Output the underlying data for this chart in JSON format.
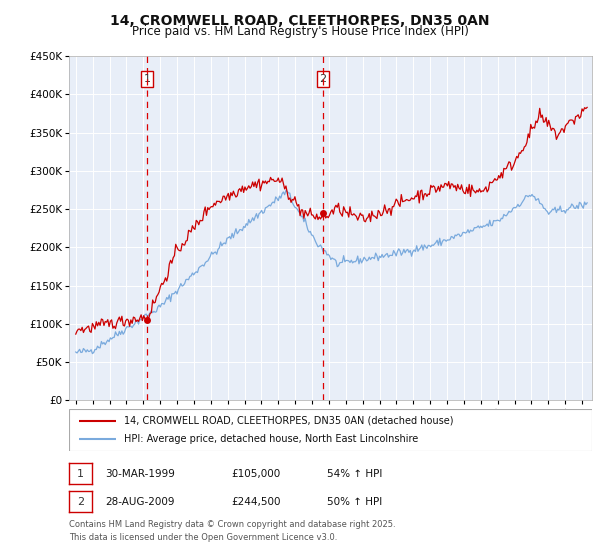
{
  "title": "14, CROMWELL ROAD, CLEETHORPES, DN35 0AN",
  "subtitle": "Price paid vs. HM Land Registry's House Price Index (HPI)",
  "title_fontsize": 10,
  "subtitle_fontsize": 8.5,
  "background_color": "#ffffff",
  "plot_bg_color": "#e8eef8",
  "grid_color": "#ffffff",
  "ylim": [
    0,
    450000
  ],
  "yticks": [
    0,
    50000,
    100000,
    150000,
    200000,
    250000,
    300000,
    350000,
    400000,
    450000
  ],
  "red_line_color": "#cc0000",
  "blue_line_color": "#7aaadd",
  "sale1_year": 1999.23,
  "sale1_price": 105000,
  "sale2_year": 2009.65,
  "sale2_price": 244500,
  "legend_line1": "14, CROMWELL ROAD, CLEETHORPES, DN35 0AN (detached house)",
  "legend_line2": "HPI: Average price, detached house, North East Lincolnshire",
  "footnote_line1": "Contains HM Land Registry data © Crown copyright and database right 2025.",
  "footnote_line2": "This data is licensed under the Open Government Licence v3.0."
}
